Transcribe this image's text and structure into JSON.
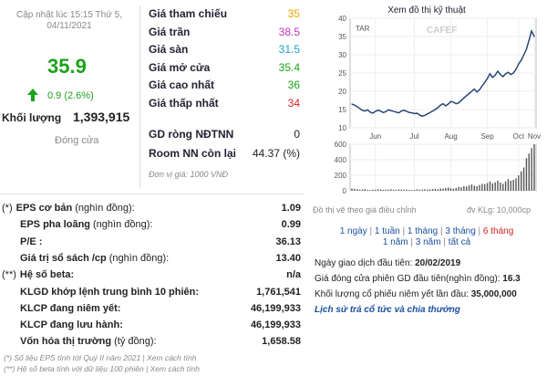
{
  "quote": {
    "updated": "Cập nhật lúc 15:15 Thứ 5,",
    "updated_date": "04/11/2021",
    "price": "35.9",
    "change": "0.9 (2.6%)",
    "volume_label": "Khối lượng",
    "volume": "1,393,915",
    "session": "Đóng cửa"
  },
  "price_info": [
    {
      "label": "Giá tham chiếu",
      "value": "35",
      "color": "#e6a700"
    },
    {
      "label": "Giá trần",
      "value": "38.5",
      "color": "#c431c4"
    },
    {
      "label": "Giá sàn",
      "value": "31.5",
      "color": "#1f9cc9"
    },
    {
      "label": "Giá mở cửa",
      "value": "35.4",
      "color": "#1aa31a"
    },
    {
      "label": "Giá cao nhất",
      "value": "36",
      "color": "#1aa31a"
    },
    {
      "label": "Giá thấp nhất",
      "value": "34",
      "color": "#d62020"
    }
  ],
  "foreign": {
    "gd_label": "GD ròng NĐTNN",
    "gd_value": "0",
    "room_label": "Room NN còn lại",
    "room_value": "44.37 (%)",
    "unit": "Đơn vị giá: 1000 VNĐ"
  },
  "fundamentals": [
    {
      "prefix": "(*)",
      "label": "EPS cơ bản",
      "note": "(nghìn đồng):",
      "value": "1.09"
    },
    {
      "prefix": "",
      "label": "EPS pha loãng",
      "note": "(nghìn đồng):",
      "value": "0.99"
    },
    {
      "prefix": "",
      "label": "P/E :",
      "note": "",
      "value": "36.13"
    },
    {
      "prefix": "",
      "label": "Giá trị sổ sách /cp",
      "note": "(nghìn đồng):",
      "value": "13.40"
    },
    {
      "prefix": "(**)",
      "label": "Hệ số beta:",
      "note": "",
      "value": "n/a"
    },
    {
      "prefix": "",
      "label": "KLGD khớp lệnh trung bình 10 phiên:",
      "note": "",
      "value": "1,761,541"
    },
    {
      "prefix": "",
      "label": "KLCP đang niêm yết:",
      "note": "",
      "value": "46,199,933"
    },
    {
      "prefix": "",
      "label": "KLCP đang lưu hành:",
      "note": "",
      "value": "46,199,933"
    },
    {
      "prefix": "",
      "label": "Vốn hóa thị trường",
      "note": "(tỷ đồng):",
      "value": "1,658.58"
    }
  ],
  "footnotes": {
    "note1": "(*) Số liệu EPS tính tới Quý II năm 2021 | Xem cách tính",
    "note2": "(**) Hệ số beta tính với dữ liệu 100 phiên | Xem cách tính"
  },
  "chart": {
    "title": "Xem đồ thị kỹ thuật",
    "ticker": "TAR",
    "brand": "CAFEF",
    "note_left": "Đồ thị vẽ theo giá điều chỉnh",
    "note_right": "đv KLg: 10,000cp",
    "periods_line1": [
      "1 ngày",
      "1 tuần",
      "1 tháng",
      "3 tháng",
      "6 tháng"
    ],
    "periods_line2": [
      "1 năm",
      "3 năm",
      "tất cả"
    ],
    "active_period": "6 tháng",
    "accent": "#d62020",
    "line_color": "#1c3f6e"
  },
  "listing": {
    "first_day_label": "Ngày giao dịch đầu tiên:",
    "first_day": "20/02/2019",
    "first_price_label": "Giá đóng cửa phiên GD đầu tiên(nghìn đồng):",
    "first_price": "16.3",
    "first_vol_label": "Khối lượng cổ phiếu niêm yết lần đầu:",
    "first_vol": "35,000,000",
    "history_link": "Lịch sử trả cổ tức và chia thưởng"
  },
  "chart_data": {
    "type": "line",
    "x_ticks": [
      "Jun",
      "Jul",
      "Aug",
      "Sep",
      "Oct",
      "Nov"
    ],
    "y_ticks": [
      10,
      15,
      20,
      25,
      30,
      35,
      40
    ],
    "ylim": [
      10,
      40
    ],
    "volume_ticks": [
      0,
      200,
      400,
      600
    ],
    "volume_ylim": [
      0,
      600
    ],
    "price_series": [
      16.5,
      16.2,
      15.8,
      15.3,
      14.8,
      14.6,
      14.9,
      14.3,
      14.0,
      14.5,
      14.8,
      14.6,
      14.2,
      14.4,
      14.9,
      14.7,
      14.5,
      14.3,
      14.1,
      14.6,
      14.8,
      14.5,
      14.2,
      14.1,
      13.9,
      14.0,
      13.5,
      13.2,
      13.4,
      13.8,
      14.2,
      14.6,
      15.0,
      15.5,
      16.2,
      16.6,
      16.0,
      16.5,
      17.2,
      17.0,
      16.6,
      16.8,
      17.5,
      18.2,
      18.8,
      19.4,
      20.0,
      20.6,
      19.8,
      20.4,
      21.5,
      22.4,
      23.5,
      24.8,
      23.8,
      24.4,
      25.5,
      24.6,
      24.0,
      24.8,
      25.2,
      24.6,
      25.0,
      26.0,
      27.5,
      28.5,
      30.0,
      31.5,
      34.0,
      36.5,
      35.0
    ],
    "volume_series": [
      30,
      25,
      20,
      15,
      18,
      22,
      12,
      10,
      15,
      14,
      20,
      18,
      12,
      15,
      16,
      20,
      14,
      12,
      18,
      16,
      14,
      15,
      12,
      10,
      11,
      18,
      14,
      16,
      20,
      15,
      18,
      22,
      25,
      20,
      30,
      28,
      35,
      40,
      32,
      28,
      35,
      50,
      45,
      60,
      55,
      70,
      80,
      65,
      60,
      75,
      90,
      85,
      100,
      120,
      95,
      110,
      130,
      105,
      90,
      120,
      150,
      130,
      140,
      160,
      200,
      250,
      300,
      420,
      480,
      550,
      600
    ]
  }
}
